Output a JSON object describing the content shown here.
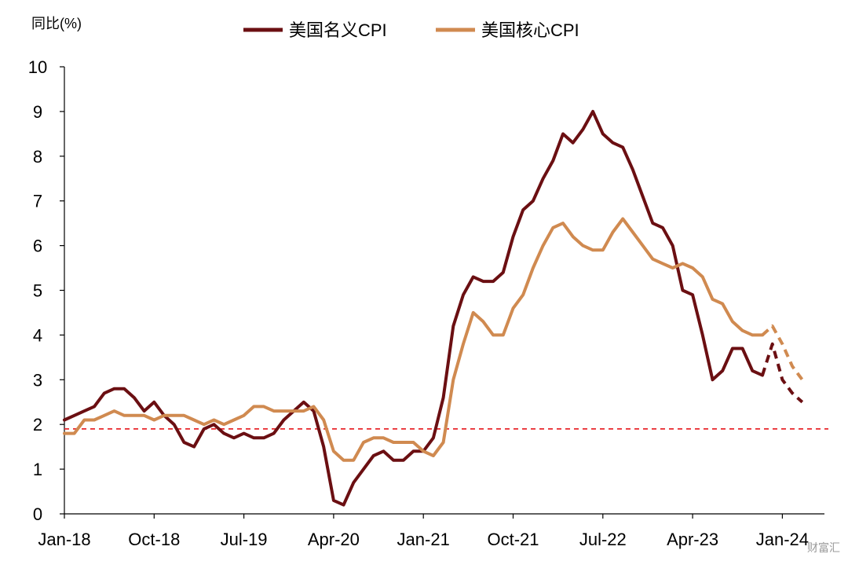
{
  "chart_data": {
    "type": "line",
    "ylabel": "同比(%)",
    "ylim": [
      0,
      10
    ],
    "yticks": [
      0,
      1,
      2,
      3,
      4,
      5,
      6,
      7,
      8,
      9,
      10
    ],
    "xticks": [
      "Jan-18",
      "Oct-18",
      "Jul-19",
      "Apr-20",
      "Jan-21",
      "Oct-21",
      "Jul-22",
      "Apr-23",
      "Jan-24"
    ],
    "x_start": "2018-01",
    "grid": false,
    "legend_position": "top",
    "reference_line": {
      "value": 1.9,
      "color": "#e8262b",
      "style": "dashed"
    },
    "series": [
      {
        "name": "美国名义CPI",
        "color": "#6b0f12",
        "values": [
          2.1,
          2.2,
          2.3,
          2.4,
          2.7,
          2.8,
          2.8,
          2.6,
          2.3,
          2.5,
          2.2,
          2.0,
          1.6,
          1.5,
          1.9,
          2.0,
          1.8,
          1.7,
          1.8,
          1.7,
          1.7,
          1.8,
          2.1,
          2.3,
          2.5,
          2.3,
          1.5,
          0.3,
          0.2,
          0.7,
          1.0,
          1.3,
          1.4,
          1.2,
          1.2,
          1.4,
          1.4,
          1.7,
          2.6,
          4.2,
          4.9,
          5.3,
          5.2,
          5.2,
          5.4,
          6.2,
          6.8,
          7.0,
          7.5,
          7.9,
          8.5,
          8.3,
          8.6,
          9.0,
          8.5,
          8.3,
          8.2,
          7.7,
          7.1,
          6.5,
          6.4,
          6.0,
          5.0,
          4.9,
          4.0,
          3.0,
          3.2,
          3.7,
          3.7,
          3.2,
          3.1
        ],
        "forecast": [
          3.1,
          3.8,
          3.0,
          2.7,
          2.5
        ]
      },
      {
        "name": "美国核心CPI",
        "color": "#d08a50",
        "values": [
          1.8,
          1.8,
          2.1,
          2.1,
          2.2,
          2.3,
          2.2,
          2.2,
          2.2,
          2.1,
          2.2,
          2.2,
          2.2,
          2.1,
          2.0,
          2.1,
          2.0,
          2.1,
          2.2,
          2.4,
          2.4,
          2.3,
          2.3,
          2.3,
          2.3,
          2.4,
          2.1,
          1.4,
          1.2,
          1.2,
          1.6,
          1.7,
          1.7,
          1.6,
          1.6,
          1.6,
          1.4,
          1.3,
          1.6,
          3.0,
          3.8,
          4.5,
          4.3,
          4.0,
          4.0,
          4.6,
          4.9,
          5.5,
          6.0,
          6.4,
          6.5,
          6.2,
          6.0,
          5.9,
          5.9,
          6.3,
          6.6,
          6.3,
          6.0,
          5.7,
          5.6,
          5.5,
          5.6,
          5.5,
          5.3,
          4.8,
          4.7,
          4.3,
          4.1,
          4.0,
          4.0
        ],
        "forecast": [
          4.0,
          4.2,
          3.8,
          3.3,
          3.0
        ]
      }
    ]
  },
  "watermark": "财富汇"
}
